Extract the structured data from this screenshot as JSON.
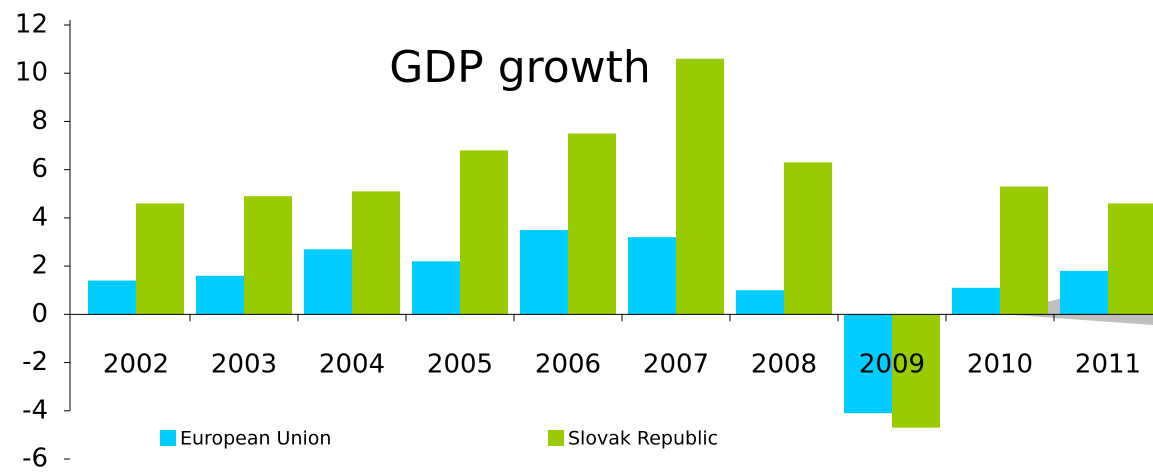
{
  "chart_data": {
    "type": "bar",
    "title": "GDP growth",
    "categories": [
      "2002",
      "2003",
      "2004",
      "2005",
      "2006",
      "2007",
      "2008",
      "2009",
      "2010",
      "2011"
    ],
    "series": [
      {
        "name": "European Union",
        "color": "#00ccff",
        "values": [
          1.4,
          1.6,
          2.7,
          2.2,
          3.5,
          3.2,
          1.0,
          -4.1,
          1.1,
          1.8
        ]
      },
      {
        "name": "Slovak Republic",
        "color": "#99cc00",
        "values": [
          4.6,
          4.9,
          5.1,
          6.8,
          7.5,
          10.6,
          6.3,
          -4.7,
          5.3,
          4.6
        ]
      }
    ],
    "ylim": [
      -6,
      12
    ],
    "yticks": [
      -6,
      -4,
      -2,
      0,
      2,
      4,
      6,
      8,
      10,
      12
    ],
    "grid": false
  }
}
